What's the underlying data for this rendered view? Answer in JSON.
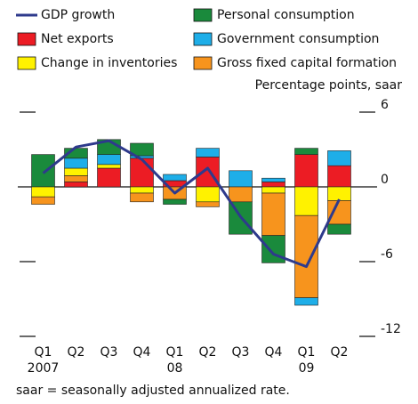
{
  "chart_data": {
    "type": "bar",
    "y_axis_label": "Percentage points, saar",
    "footnote": "saar = seasonally adjusted annualized rate.",
    "categories": [
      "Q1",
      "Q2",
      "Q3",
      "Q4",
      "Q1",
      "Q2",
      "Q3",
      "Q4",
      "Q1",
      "Q2"
    ],
    "year_labels": [
      "2007",
      null,
      null,
      null,
      "08",
      null,
      null,
      null,
      "09",
      null
    ],
    "ylim": [
      -12,
      6
    ],
    "yticks": [
      6,
      0,
      -6,
      -12
    ],
    "series": [
      {
        "name": "GDP growth",
        "type": "line",
        "color": "#2e3a8c",
        "values": [
          1.1,
          3.2,
          3.7,
          2.2,
          -0.5,
          1.5,
          -2.4,
          -5.4,
          -6.4,
          -1.0
        ]
      },
      {
        "name": "Net exports",
        "color": "#ec1c24",
        "values": [
          0,
          0.4,
          1.5,
          2.3,
          0.5,
          2.4,
          0,
          0.4,
          2.6,
          1.7
        ]
      },
      {
        "name": "Change in inventories",
        "color": "#fff200",
        "values": [
          -0.8,
          0.6,
          0.3,
          -0.5,
          0,
          -1.2,
          0,
          -0.5,
          -2.3,
          -1.1
        ]
      },
      {
        "name": "Personal consumption",
        "color": "#1a8a3c",
        "values": [
          2.6,
          0.8,
          1.2,
          1.0,
          -0.4,
          0,
          -2.6,
          -2.2,
          0.5,
          -0.8
        ]
      },
      {
        "name": "Government consumption",
        "color": "#1eaee8",
        "values": [
          0,
          0.8,
          0.8,
          0.2,
          0.5,
          0.7,
          1.3,
          0.3,
          -0.6,
          1.2
        ]
      },
      {
        "name": "Gross fixed capital formation",
        "color": "#f7941d",
        "values": [
          -0.6,
          0.5,
          0,
          -0.7,
          -1.0,
          -0.4,
          -1.2,
          -3.4,
          -6.6,
          -1.9
        ]
      }
    ]
  }
}
